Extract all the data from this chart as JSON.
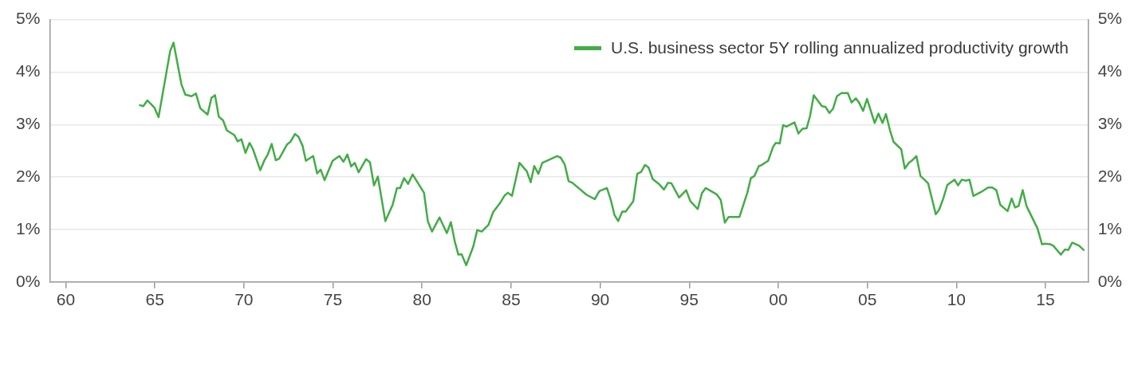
{
  "chart_data": {
    "type": "line",
    "x": [
      1964.16,
      1964.35,
      1964.58,
      1964.98,
      1965.21,
      1965.86,
      1966.05,
      1966.49,
      1966.71,
      1967.06,
      1967.31,
      1967.55,
      1967.96,
      1968.18,
      1968.38,
      1968.59,
      1968.83,
      1969.04,
      1969.46,
      1969.65,
      1969.86,
      1970.09,
      1970.32,
      1970.51,
      1970.92,
      1971.14,
      1971.34,
      1971.56,
      1971.79,
      1971.98,
      1972.42,
      1972.61,
      1972.87,
      1973.06,
      1973.29,
      1973.48,
      1973.89,
      1974.11,
      1974.31,
      1974.53,
      1974.98,
      1975.36,
      1975.59,
      1975.81,
      1976.02,
      1976.22,
      1976.44,
      1976.86,
      1977.08,
      1977.3,
      1977.52,
      1977.94,
      1978.35,
      1978.59,
      1978.77,
      1978.99,
      1979.22,
      1979.47,
      1980.11,
      1980.33,
      1980.56,
      1980.98,
      1981.39,
      1981.62,
      1981.84,
      1982.04,
      1982.22,
      1982.48,
      1982.87,
      1983.1,
      1983.35,
      1983.73,
      1983.99,
      1984.37,
      1984.64,
      1984.82,
      1985.05,
      1985.47,
      1985.88,
      1986.1,
      1986.3,
      1986.53,
      1986.75,
      1987.58,
      1987.78,
      1988.01,
      1988.23,
      1988.44,
      1989.24,
      1989.7,
      1989.95,
      1990.38,
      1990.6,
      1990.8,
      1991.01,
      1991.24,
      1991.43,
      1991.86,
      1992.08,
      1992.3,
      1992.52,
      1992.72,
      1992.95,
      1993.32,
      1993.58,
      1993.81,
      1994.0,
      1994.43,
      1994.83,
      1995.06,
      1995.48,
      1995.71,
      1995.92,
      1996.54,
      1996.77,
      1997.0,
      1997.21,
      1997.82,
      1998.26,
      1998.46,
      1998.66,
      1998.91,
      1999.02,
      1999.43,
      1999.7,
      1999.85,
      2000.08,
      2000.27,
      2000.45,
      2000.91,
      2001.13,
      2001.36,
      2001.59,
      2001.78,
      2001.99,
      2002.45,
      2002.64,
      2002.87,
      2003.07,
      2003.29,
      2003.55,
      2003.9,
      2004.11,
      2004.35,
      2004.53,
      2004.76,
      2004.98,
      2005.41,
      2005.62,
      2005.85,
      2006.04,
      2006.27,
      2006.47,
      2006.9,
      2007.1,
      2007.33,
      2007.52,
      2007.75,
      2007.98,
      2008.2,
      2008.41,
      2008.84,
      2009.03,
      2009.26,
      2009.49,
      2009.89,
      2010.09,
      2010.3,
      2010.53,
      2010.73,
      2010.95,
      2011.36,
      2011.78,
      2012.01,
      2012.24,
      2012.46,
      2012.87,
      2013.1,
      2013.29,
      2013.49,
      2013.72,
      2013.93,
      2014.55,
      2014.8,
      2015.0,
      2015.26,
      2015.44,
      2015.86,
      2016.09,
      2016.28,
      2016.5,
      2016.89,
      2017.14
    ],
    "series": [
      {
        "name": "U.S. business sector 5Y rolling annualized productivity growth",
        "color": "#43ac47",
        "values": [
          3.37,
          3.35,
          3.46,
          3.32,
          3.14,
          4.4,
          4.56,
          3.77,
          3.57,
          3.54,
          3.59,
          3.31,
          3.19,
          3.51,
          3.56,
          3.15,
          3.08,
          2.89,
          2.8,
          2.68,
          2.72,
          2.46,
          2.65,
          2.53,
          2.13,
          2.31,
          2.43,
          2.63,
          2.32,
          2.35,
          2.62,
          2.67,
          2.82,
          2.77,
          2.6,
          2.31,
          2.4,
          2.07,
          2.14,
          1.94,
          2.31,
          2.4,
          2.29,
          2.43,
          2.2,
          2.27,
          2.09,
          2.34,
          2.28,
          1.84,
          2.01,
          1.16,
          1.47,
          1.79,
          1.79,
          1.98,
          1.87,
          2.05,
          1.7,
          1.15,
          0.96,
          1.23,
          0.93,
          1.14,
          0.77,
          0.52,
          0.53,
          0.32,
          0.67,
          0.99,
          0.96,
          1.09,
          1.33,
          1.5,
          1.65,
          1.7,
          1.64,
          2.27,
          2.11,
          1.9,
          2.21,
          2.06,
          2.27,
          2.4,
          2.37,
          2.24,
          1.92,
          1.89,
          1.66,
          1.58,
          1.73,
          1.79,
          1.56,
          1.28,
          1.16,
          1.34,
          1.34,
          1.54,
          2.06,
          2.1,
          2.23,
          2.18,
          1.96,
          1.86,
          1.76,
          1.89,
          1.88,
          1.61,
          1.75,
          1.54,
          1.39,
          1.69,
          1.79,
          1.67,
          1.56,
          1.13,
          1.24,
          1.24,
          1.7,
          1.98,
          2.02,
          2.21,
          2.22,
          2.31,
          2.57,
          2.65,
          2.64,
          2.99,
          2.96,
          3.04,
          2.83,
          2.92,
          2.93,
          3.16,
          3.56,
          3.35,
          3.34,
          3.22,
          3.3,
          3.54,
          3.6,
          3.6,
          3.42,
          3.5,
          3.42,
          3.26,
          3.49,
          3.03,
          3.21,
          3.03,
          3.2,
          2.89,
          2.67,
          2.53,
          2.16,
          2.27,
          2.32,
          2.4,
          2.02,
          1.95,
          1.88,
          1.29,
          1.38,
          1.59,
          1.85,
          1.95,
          1.84,
          1.95,
          1.93,
          1.95,
          1.64,
          1.71,
          1.8,
          1.8,
          1.75,
          1.47,
          1.35,
          1.59,
          1.42,
          1.45,
          1.75,
          1.45,
          1.02,
          0.72,
          0.73,
          0.72,
          0.69,
          0.52,
          0.62,
          0.61,
          0.75,
          0.69,
          0.61
        ]
      }
    ],
    "xlim": [
      1959.1,
      2017.4
    ],
    "xticks": [
      {
        "value": 1960,
        "label": "60"
      },
      {
        "value": 1965,
        "label": "65"
      },
      {
        "value": 1970,
        "label": "70"
      },
      {
        "value": 1975,
        "label": "75"
      },
      {
        "value": 1980,
        "label": "80"
      },
      {
        "value": 1985,
        "label": "85"
      },
      {
        "value": 1990,
        "label": "90"
      },
      {
        "value": 1995,
        "label": "95"
      },
      {
        "value": 2000,
        "label": "00"
      },
      {
        "value": 2005,
        "label": "05"
      },
      {
        "value": 2010,
        "label": "10"
      },
      {
        "value": 2015,
        "label": "15"
      }
    ],
    "ylim": [
      0,
      5
    ],
    "yticks": [
      {
        "value": 0,
        "label": "0%"
      },
      {
        "value": 1,
        "label": "1%"
      },
      {
        "value": 2,
        "label": "2%"
      },
      {
        "value": 3,
        "label": "3%"
      },
      {
        "value": 4,
        "label": "4%"
      },
      {
        "value": 5,
        "label": "5%"
      }
    ],
    "y2lim": [
      0,
      5
    ],
    "y2ticks": [
      {
        "value": 0,
        "label": "0%"
      },
      {
        "value": 1,
        "label": "1%"
      },
      {
        "value": 2,
        "label": "2%"
      },
      {
        "value": 3,
        "label": "3%"
      },
      {
        "value": 4,
        "label": "4%"
      },
      {
        "value": 5,
        "label": "5%"
      }
    ],
    "grid": "y",
    "legend": "top right",
    "marker": "none",
    "line_style": "solid"
  }
}
